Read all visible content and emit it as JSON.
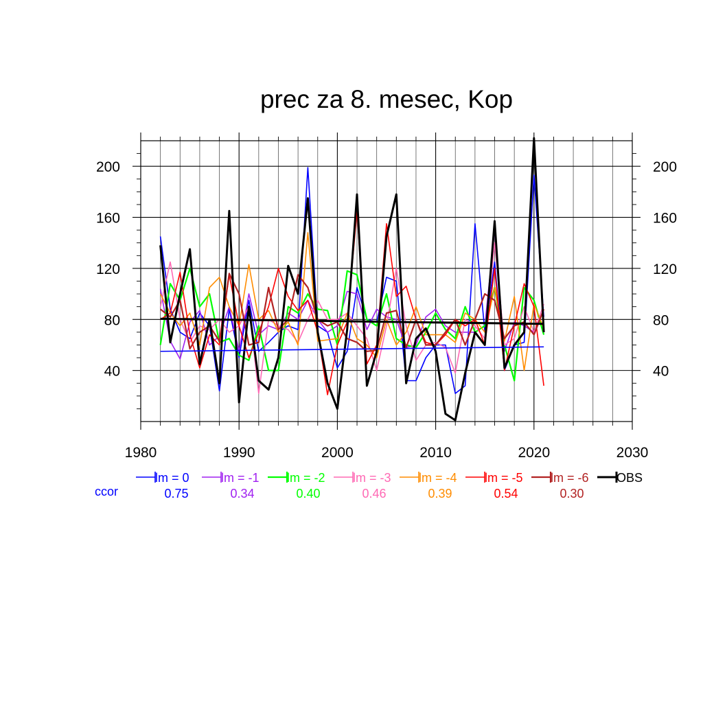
{
  "chart_data": {
    "type": "line",
    "title": "prec za 8. mesec, Kop",
    "xlabel": "",
    "ylabel": "",
    "xlim": [
      1980,
      2030
    ],
    "ylim": [
      0,
      220
    ],
    "x_ticks": [
      1980,
      1990,
      2000,
      2010,
      2020,
      2030
    ],
    "y_ticks": [
      40,
      80,
      120,
      160,
      200
    ],
    "grid": true,
    "legend_position": "bottom",
    "x": [
      1982,
      1983,
      1984,
      1985,
      1986,
      1987,
      1988,
      1989,
      1990,
      1991,
      1992,
      1993,
      1994,
      1995,
      1996,
      1997,
      1998,
      1999,
      2000,
      2001,
      2002,
      2003,
      2004,
      2005,
      2006,
      2007,
      2008,
      2009,
      2010,
      2011,
      2012,
      2013,
      2014,
      2015,
      2016,
      2017,
      2018,
      2019,
      2020,
      2021
    ],
    "series": [
      {
        "name": "lm = 0",
        "color": "#0000ff",
        "width": 1.6,
        "values": [
          145,
          88,
          70,
          65,
          85,
          75,
          24,
          88,
          50,
          95,
          55,
          62,
          70,
          75,
          72,
          199,
          75,
          70,
          42,
          55,
          105,
          80,
          78,
          113,
          110,
          32,
          32,
          50,
          60,
          60,
          22,
          28,
          155,
          70,
          125,
          40,
          60,
          62,
          193,
          82
        ]
      },
      {
        "name": "lm = -1",
        "color": "#a020f0",
        "width": 1.6,
        "values": [
          104,
          63,
          49,
          78,
          87,
          60,
          67,
          90,
          55,
          100,
          68,
          75,
          72,
          85,
          80,
          95,
          80,
          70,
          75,
          102,
          100,
          72,
          88,
          82,
          80,
          58,
          60,
          82,
          88,
          75,
          70,
          70,
          70,
          75,
          150,
          55,
          78,
          75,
          70,
          88
        ]
      },
      {
        "name": "lm = -2",
        "color": "#00ff00",
        "width": 2.2,
        "values": [
          60,
          108,
          95,
          120,
          90,
          100,
          62,
          65,
          52,
          48,
          75,
          40,
          40,
          90,
          85,
          100,
          88,
          87,
          60,
          118,
          115,
          80,
          75,
          100,
          65,
          60,
          58,
          70,
          85,
          72,
          65,
          90,
          70,
          75,
          105,
          60,
          32,
          105,
          95,
          68
        ]
      },
      {
        "name": "lm = -3",
        "color": "#ff69b4",
        "width": 1.6,
        "values": [
          90,
          125,
          80,
          62,
          75,
          72,
          80,
          70,
          75,
          90,
          22,
          80,
          75,
          72,
          62,
          80,
          95,
          80,
          80,
          85,
          75,
          65,
          40,
          75,
          120,
          75,
          48,
          60,
          62,
          58,
          38,
          80,
          75,
          65,
          140,
          60,
          65,
          90,
          70,
          92
        ]
      },
      {
        "name": "lm = -4",
        "color": "#ff8c00",
        "width": 1.6,
        "values": [
          100,
          85,
          75,
          85,
          60,
          105,
          113,
          90,
          75,
          123,
          80,
          87,
          70,
          78,
          60,
          148,
          63,
          64,
          65,
          85,
          65,
          60,
          50,
          80,
          60,
          70,
          90,
          68,
          68,
          68,
          62,
          85,
          80,
          70,
          105,
          63,
          98,
          40,
          92,
          73
        ]
      },
      {
        "name": "lm = -5",
        "color": "#ff0000",
        "width": 1.6,
        "values": [
          80,
          85,
          117,
          68,
          42,
          68,
          60,
          115,
          75,
          50,
          70,
          90,
          120,
          98,
          87,
          95,
          70,
          21,
          60,
          78,
          165,
          45,
          60,
          155,
          98,
          106,
          80,
          62,
          60,
          68,
          80,
          75,
          80,
          60,
          120,
          40,
          75,
          108,
          90,
          28
        ]
      },
      {
        "name": "lm = -6",
        "color": "#b22222",
        "width": 2.2,
        "values": [
          88,
          82,
          95,
          57,
          70,
          75,
          63,
          116,
          100,
          60,
          62,
          105,
          72,
          80,
          115,
          105,
          80,
          75,
          78,
          65,
          62,
          55,
          56,
          85,
          87,
          58,
          80,
          60,
          60,
          70,
          80,
          60,
          80,
          100,
          95,
          65,
          75,
          78,
          68,
          88
        ]
      },
      {
        "name": "OBS",
        "color": "#000000",
        "width": 3.0,
        "values": [
          138,
          62,
          100,
          135,
          45,
          80,
          30,
          165,
          15,
          90,
          32,
          25,
          50,
          122,
          100,
          175,
          70,
          30,
          10,
          72,
          178,
          28,
          55,
          145,
          178,
          30,
          65,
          73,
          55,
          6,
          1,
          38,
          70,
          60,
          157,
          42,
          60,
          70,
          222,
          70
        ]
      }
    ],
    "trendlines": [
      {
        "series": "lm = 0",
        "color": "#0000ff",
        "width": 1.6,
        "x": [
          1982,
          2021
        ],
        "y": [
          55,
          58.5
        ]
      },
      {
        "series": "OBS",
        "color": "#000000",
        "width": 3.0,
        "x": [
          1982,
          2021
        ],
        "y": [
          80.5,
          76.5
        ]
      }
    ],
    "ccor": {
      "label": "ccor",
      "label_color": "#0000ff",
      "values": [
        "0.75",
        "0.34",
        "0.40",
        "0.46",
        "0.39",
        "0.54",
        "0.30"
      ]
    }
  }
}
